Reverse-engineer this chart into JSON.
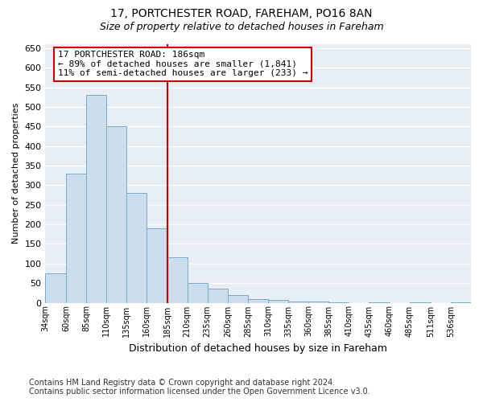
{
  "title": "17, PORTCHESTER ROAD, FAREHAM, PO16 8AN",
  "subtitle": "Size of property relative to detached houses in Fareham",
  "xlabel": "Distribution of detached houses by size in Fareham",
  "ylabel": "Number of detached properties",
  "bin_labels": [
    "34sqm",
    "60sqm",
    "85sqm",
    "110sqm",
    "135sqm",
    "160sqm",
    "185sqm",
    "210sqm",
    "235sqm",
    "260sqm",
    "285sqm",
    "310sqm",
    "335sqm",
    "360sqm",
    "385sqm",
    "410sqm",
    "435sqm",
    "460sqm",
    "485sqm",
    "511sqm",
    "536sqm"
  ],
  "bin_edges": [
    34,
    60,
    85,
    110,
    135,
    160,
    185,
    210,
    235,
    260,
    285,
    310,
    335,
    360,
    385,
    410,
    435,
    460,
    485,
    511,
    536,
    561
  ],
  "values": [
    75,
    330,
    530,
    450,
    280,
    190,
    115,
    50,
    35,
    20,
    10,
    7,
    4,
    3,
    2,
    0,
    2,
    0,
    2,
    0,
    2
  ],
  "bar_color": "#ccdded",
  "bar_edge_color": "#7aaac8",
  "property_line_x": 186,
  "property_line_color": "#cc0000",
  "annotation_line1": "17 PORTCHESTER ROAD: 186sqm",
  "annotation_line2": "← 89% of detached houses are smaller (1,841)",
  "annotation_line3": "11% of semi-detached houses are larger (233) →",
  "annotation_box_color": "#cc0000",
  "ylim": [
    0,
    660
  ],
  "yticks": [
    0,
    50,
    100,
    150,
    200,
    250,
    300,
    350,
    400,
    450,
    500,
    550,
    600,
    650
  ],
  "footer_line1": "Contains HM Land Registry data © Crown copyright and database right 2024.",
  "footer_line2": "Contains public sector information licensed under the Open Government Licence v3.0.",
  "fig_background_color": "#ffffff",
  "plot_background_color": "#e8eef5",
  "grid_color": "#ffffff",
  "title_fontsize": 10,
  "subtitle_fontsize": 9,
  "annotation_fontsize": 8,
  "footer_fontsize": 7,
  "ylabel_fontsize": 8,
  "xlabel_fontsize": 9
}
